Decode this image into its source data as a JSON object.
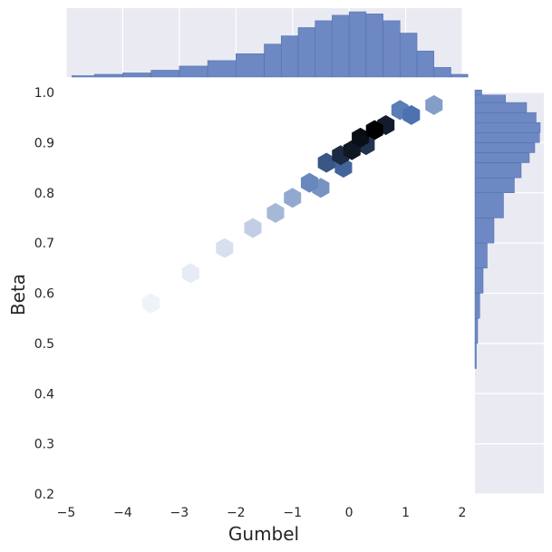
{
  "chart_data": {
    "type": "hexbin-joint",
    "xlabel": "Gumbel",
    "ylabel": "Beta",
    "xlim": [
      -5,
      2
    ],
    "ylim": [
      0.2,
      1.0
    ],
    "x_ticks": [
      -5,
      -4,
      -3,
      -2,
      -1,
      0,
      1,
      2
    ],
    "x_tick_labels": [
      "−5",
      "−4",
      "−3",
      "−2",
      "−1",
      "0",
      "1",
      "2"
    ],
    "y_ticks": [
      0.2,
      0.3,
      0.4,
      0.5,
      0.6,
      0.7,
      0.8,
      0.9,
      1.0
    ],
    "y_tick_labels": [
      "0.2",
      "0.3",
      "0.4",
      "0.5",
      "0.6",
      "0.7",
      "0.8",
      "0.9",
      "1.0"
    ],
    "grid": true,
    "colors": {
      "panel_bg": "#eaeaf2",
      "grid": "#ffffff",
      "bar_fill": "#6d88c2",
      "bar_edge": "#4c6fb0",
      "hex_light": "#f4f6fb",
      "hex_mid": "#4c72b0",
      "hex_dark": "#000000",
      "text": "#262626"
    },
    "hexbin_density": {
      "description_axis": "relative count 0-1 by Gumbel (x) and Beta (y)",
      "cells": [
        {
          "x": 0.45,
          "y": 0.925,
          "v": 1.0
        },
        {
          "x": 0.2,
          "y": 0.91,
          "v": 0.95
        },
        {
          "x": 0.65,
          "y": 0.935,
          "v": 0.9
        },
        {
          "x": 0.05,
          "y": 0.885,
          "v": 0.92
        },
        {
          "x": -0.15,
          "y": 0.875,
          "v": 0.85
        },
        {
          "x": 0.3,
          "y": 0.895,
          "v": 0.82
        },
        {
          "x": -0.4,
          "y": 0.86,
          "v": 0.7
        },
        {
          "x": -0.1,
          "y": 0.85,
          "v": 0.65
        },
        {
          "x": -0.7,
          "y": 0.82,
          "v": 0.5
        },
        {
          "x": -0.5,
          "y": 0.81,
          "v": 0.45
        },
        {
          "x": -1.0,
          "y": 0.79,
          "v": 0.35
        },
        {
          "x": -1.3,
          "y": 0.76,
          "v": 0.28
        },
        {
          "x": -1.7,
          "y": 0.73,
          "v": 0.18
        },
        {
          "x": -2.2,
          "y": 0.69,
          "v": 0.1
        },
        {
          "x": -2.8,
          "y": 0.64,
          "v": 0.05
        },
        {
          "x": -3.5,
          "y": 0.58,
          "v": 0.02
        },
        {
          "x": 1.1,
          "y": 0.955,
          "v": 0.6
        },
        {
          "x": 1.5,
          "y": 0.975,
          "v": 0.4
        },
        {
          "x": 0.9,
          "y": 0.965,
          "v": 0.55
        }
      ]
    },
    "marginal_x_hist": {
      "orientation": "vertical",
      "bins": [
        {
          "x": -4.9,
          "count": 2
        },
        {
          "x": -4.5,
          "count": 4
        },
        {
          "x": -4.0,
          "count": 6
        },
        {
          "x": -3.5,
          "count": 10
        },
        {
          "x": -3.0,
          "count": 16
        },
        {
          "x": -2.5,
          "count": 24
        },
        {
          "x": -2.0,
          "count": 34
        },
        {
          "x": -1.5,
          "count": 48
        },
        {
          "x": -1.2,
          "count": 60
        },
        {
          "x": -0.9,
          "count": 72
        },
        {
          "x": -0.6,
          "count": 82
        },
        {
          "x": -0.3,
          "count": 90
        },
        {
          "x": 0.0,
          "count": 95
        },
        {
          "x": 0.3,
          "count": 92
        },
        {
          "x": 0.6,
          "count": 82
        },
        {
          "x": 0.9,
          "count": 64
        },
        {
          "x": 1.2,
          "count": 38
        },
        {
          "x": 1.5,
          "count": 14
        },
        {
          "x": 1.8,
          "count": 4
        }
      ]
    },
    "marginal_y_hist": {
      "orientation": "horizontal",
      "bins": [
        {
          "y": 0.45,
          "count": 2
        },
        {
          "y": 0.5,
          "count": 4
        },
        {
          "y": 0.55,
          "count": 7
        },
        {
          "y": 0.6,
          "count": 12
        },
        {
          "y": 0.65,
          "count": 18
        },
        {
          "y": 0.7,
          "count": 28
        },
        {
          "y": 0.75,
          "count": 42
        },
        {
          "y": 0.8,
          "count": 58
        },
        {
          "y": 0.83,
          "count": 68
        },
        {
          "y": 0.86,
          "count": 80
        },
        {
          "y": 0.88,
          "count": 88
        },
        {
          "y": 0.9,
          "count": 95
        },
        {
          "y": 0.92,
          "count": 96
        },
        {
          "y": 0.94,
          "count": 90
        },
        {
          "y": 0.96,
          "count": 76
        },
        {
          "y": 0.98,
          "count": 45
        },
        {
          "y": 0.995,
          "count": 10
        }
      ]
    }
  }
}
